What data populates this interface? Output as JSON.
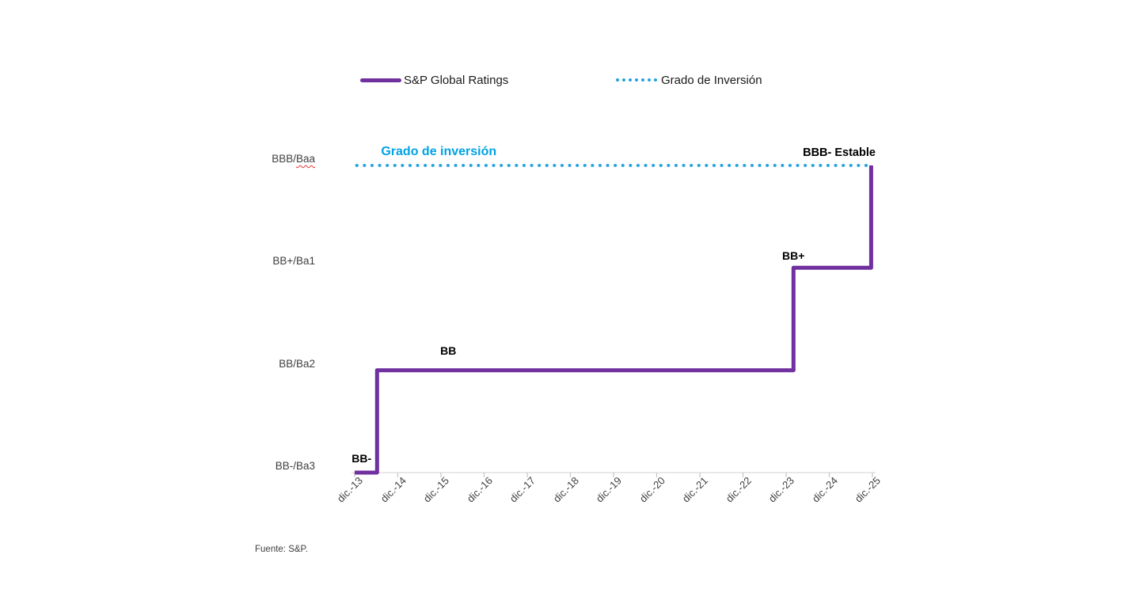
{
  "page": {
    "background": "#ffffff"
  },
  "legend": {
    "items": [
      {
        "label": "S&P Global Ratings",
        "color": "#7030A0",
        "style": "solid"
      },
      {
        "label": "Grado de Inversión",
        "color": "#29A4DE",
        "style": "dotted"
      }
    ]
  },
  "source_note": "Fuente: S&P.",
  "chart_data": {
    "type": "line",
    "subtype": "step",
    "title": "",
    "xlabel": "",
    "ylabel": "",
    "x_tick_labels": [
      "dic.-13",
      "dic.-14",
      "dic.-15",
      "dic.-16",
      "dic.-17",
      "dic.-18",
      "dic.-19",
      "dic.-20",
      "dic.-21",
      "dic.-22",
      "dic.-23",
      "dic.-24",
      "dic.-25"
    ],
    "y_axis": [
      {
        "label": "BBB/Baa",
        "level": 3,
        "spellcheck_wavy_part": "Baa"
      },
      {
        "label": "BB+/Ba1",
        "level": 2
      },
      {
        "label": "BB/Ba2",
        "level": 1
      },
      {
        "label": "BB-/Ba3",
        "level": 0
      }
    ],
    "series": [
      {
        "name": "S&P Global Ratings",
        "color": "#7030A0",
        "line_style": "solid",
        "points": [
          [
            0,
            0
          ],
          [
            0.52,
            0
          ],
          [
            0.52,
            1
          ],
          [
            10.17,
            1
          ],
          [
            10.17,
            2
          ],
          [
            11.97,
            2
          ],
          [
            11.97,
            3
          ]
        ]
      },
      {
        "name": "Grado de Inversión",
        "color": "#29A4DE",
        "line_style": "dotted",
        "points": [
          [
            0.05,
            3
          ],
          [
            11.95,
            3
          ]
        ]
      }
    ],
    "annotations": [
      {
        "text": "BB-",
        "x": 0.16,
        "y": 0.14,
        "color": "#000000",
        "size": 14
      },
      {
        "text": "BB",
        "x": 2.17,
        "y": 1.19,
        "color": "#000000",
        "size": 14
      },
      {
        "text": "BB+",
        "x": 10.17,
        "y": 2.12,
        "color": "#000000",
        "size": 14
      },
      {
        "text": "BBB- Estable",
        "x": 11.23,
        "y": 3.12,
        "color": "#000000",
        "size": 14.5
      },
      {
        "text": "Grado de inversión",
        "x": 1.95,
        "y": 3.13,
        "color": "#00A2E4",
        "size": 16
      }
    ],
    "axis": {
      "line_color": "#D9D9D9",
      "tick_color": "#C9C9C9",
      "label_color": "#3f3f3f"
    },
    "x_range_years": [
      "dic.-13",
      "dic.-25"
    ],
    "legend_position": "top"
  }
}
